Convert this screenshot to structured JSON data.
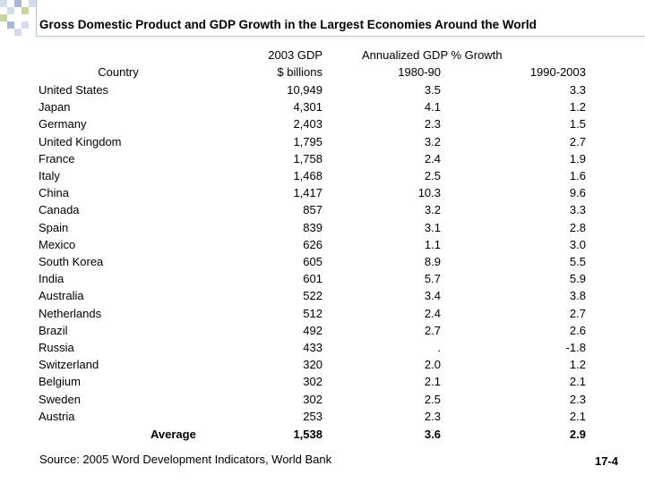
{
  "title": "Gross Domestic Product and GDP Growth in the Largest Economies Around the World",
  "headers": {
    "country": "Country",
    "gdp_line1": "2003 GDP",
    "gdp_line2": "$ billions",
    "growth_line1": "Annualized GDP % Growth",
    "growth_8090": "1980-90",
    "growth_9003": "1990-2003"
  },
  "rows": [
    {
      "country": "United States",
      "gdp": "10,949",
      "g1": "3.5",
      "g2": "3.3"
    },
    {
      "country": "Japan",
      "gdp": "4,301",
      "g1": "4.1",
      "g2": "1.2"
    },
    {
      "country": "Germany",
      "gdp": "2,403",
      "g1": "2.3",
      "g2": "1.5"
    },
    {
      "country": "United Kingdom",
      "gdp": "1,795",
      "g1": "3.2",
      "g2": "2.7"
    },
    {
      "country": "France",
      "gdp": "1,758",
      "g1": "2.4",
      "g2": "1.9"
    },
    {
      "country": "Italy",
      "gdp": "1,468",
      "g1": "2.5",
      "g2": "1.6"
    },
    {
      "country": "China",
      "gdp": "1,417",
      "g1": "10.3",
      "g2": "9.6"
    },
    {
      "country": "Canada",
      "gdp": "857",
      "g1": "3.2",
      "g2": "3.3"
    },
    {
      "country": "Spain",
      "gdp": "839",
      "g1": "3.1",
      "g2": "2.8"
    },
    {
      "country": "Mexico",
      "gdp": "626",
      "g1": "1.1",
      "g2": "3.0"
    },
    {
      "country": "South Korea",
      "gdp": "605",
      "g1": "8.9",
      "g2": "5.5"
    },
    {
      "country": "India",
      "gdp": "601",
      "g1": "5.7",
      "g2": "5.9"
    },
    {
      "country": "Australia",
      "gdp": "522",
      "g1": "3.4",
      "g2": "3.8"
    },
    {
      "country": "Netherlands",
      "gdp": "512",
      "g1": "2.4",
      "g2": "2.7"
    },
    {
      "country": "Brazil",
      "gdp": "492",
      "g1": "2.7",
      "g2": "2.6"
    },
    {
      "country": "Russia",
      "gdp": "433",
      "g1": ".",
      "g2": "-1.8"
    },
    {
      "country": "Switzerland",
      "gdp": "320",
      "g1": "2.0",
      "g2": "1.2"
    },
    {
      "country": "Belgium",
      "gdp": "302",
      "g1": "2.1",
      "g2": "2.1"
    },
    {
      "country": "Sweden",
      "gdp": "302",
      "g1": "2.5",
      "g2": "2.3"
    },
    {
      "country": "Austria",
      "gdp": "253",
      "g1": "2.3",
      "g2": "2.1"
    }
  ],
  "average": {
    "label": "Average",
    "gdp": "1,538",
    "g1": "3.6",
    "g2": "2.9"
  },
  "source": "Source: 2005 Word Development Indicators, World Bank",
  "page_number": "17-4",
  "colors": {
    "deco_light": "#d4dcec",
    "deco_mid": "#a8b8d8",
    "accent": "#c8d4a0",
    "rule": "#b8c4dc"
  }
}
